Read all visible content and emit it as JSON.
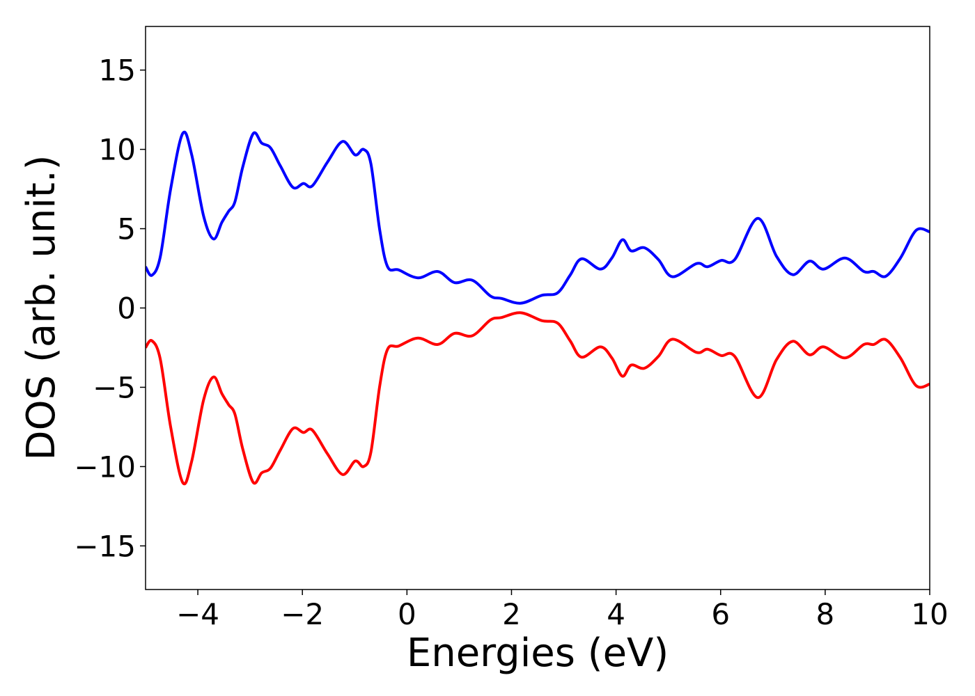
{
  "chart_data": {
    "type": "line",
    "title": "",
    "xlabel": "Energies (eV)",
    "ylabel": "DOS (arb. unit.)",
    "xlim": [
      -5,
      10
    ],
    "ylim": [
      -17.75,
      17.75
    ],
    "xticks": [
      -4,
      -2,
      0,
      2,
      4,
      6,
      8,
      10
    ],
    "yticks": [
      -15,
      -10,
      -5,
      0,
      5,
      10,
      15
    ],
    "xtick_labels": [
      "−4",
      "−2",
      "0",
      "2",
      "4",
      "6",
      "8",
      "10"
    ],
    "ytick_labels": [
      "−15",
      "−10",
      "−5",
      "0",
      "5",
      "10",
      "15"
    ],
    "grid": false,
    "x": [
      -5,
      -4.88,
      -4.72,
      -4.52,
      -4.29,
      -4.12,
      -3.89,
      -3.7,
      -3.54,
      -3.41,
      -3.29,
      -3.14,
      -2.94,
      -2.78,
      -2.61,
      -2.42,
      -2.18,
      -1.98,
      -1.81,
      -1.52,
      -1.23,
      -0.99,
      -0.83,
      -0.69,
      -0.52,
      -0.37,
      -0.16,
      0.21,
      0.59,
      0.91,
      1.25,
      1.6,
      1.81,
      2.18,
      2.58,
      2.88,
      3.12,
      3.34,
      3.7,
      3.92,
      4.12,
      4.29,
      4.54,
      4.81,
      5.08,
      5.54,
      5.75,
      6.01,
      6.27,
      6.71,
      7.07,
      7.38,
      7.7,
      7.97,
      8.38,
      8.74,
      8.93,
      9.16,
      9.44,
      9.74,
      10
    ],
    "series": [
      {
        "color": "#0000ff",
        "values": [
          2.6,
          2.06,
          3.2,
          7.5,
          11.0,
          9.7,
          5.8,
          4.35,
          5.4,
          6.1,
          6.7,
          8.9,
          11.0,
          10.4,
          10.1,
          8.95,
          7.6,
          7.85,
          7.7,
          9.2,
          10.5,
          9.65,
          10.0,
          9.1,
          4.9,
          2.6,
          2.4,
          1.9,
          2.3,
          1.6,
          1.75,
          0.75,
          0.6,
          0.3,
          0.8,
          0.95,
          2.06,
          3.1,
          2.45,
          3.15,
          4.3,
          3.6,
          3.8,
          3.05,
          1.97,
          2.8,
          2.6,
          3.0,
          3.05,
          5.65,
          3.25,
          2.1,
          2.95,
          2.45,
          3.15,
          2.3,
          2.3,
          2.0,
          3.15,
          4.9,
          4.8
        ]
      },
      {
        "color": "#ff0000",
        "values": [
          -2.5,
          -2.06,
          -3.2,
          -7.5,
          -11.0,
          -9.7,
          -5.8,
          -4.35,
          -5.4,
          -6.1,
          -6.7,
          -8.9,
          -11.0,
          -10.4,
          -10.1,
          -8.95,
          -7.6,
          -7.85,
          -7.7,
          -9.2,
          -10.5,
          -9.65,
          -10.0,
          -9.1,
          -4.9,
          -2.6,
          -2.4,
          -1.9,
          -2.3,
          -1.6,
          -1.75,
          -0.75,
          -0.6,
          -0.3,
          -0.8,
          -0.95,
          -2.06,
          -3.1,
          -2.45,
          -3.15,
          -4.3,
          -3.6,
          -3.8,
          -3.05,
          -1.97,
          -2.8,
          -2.6,
          -3.0,
          -3.05,
          -5.65,
          -3.25,
          -2.1,
          -2.95,
          -2.45,
          -3.15,
          -2.3,
          -2.3,
          -2.0,
          -3.15,
          -4.9,
          -4.8
        ]
      }
    ]
  }
}
